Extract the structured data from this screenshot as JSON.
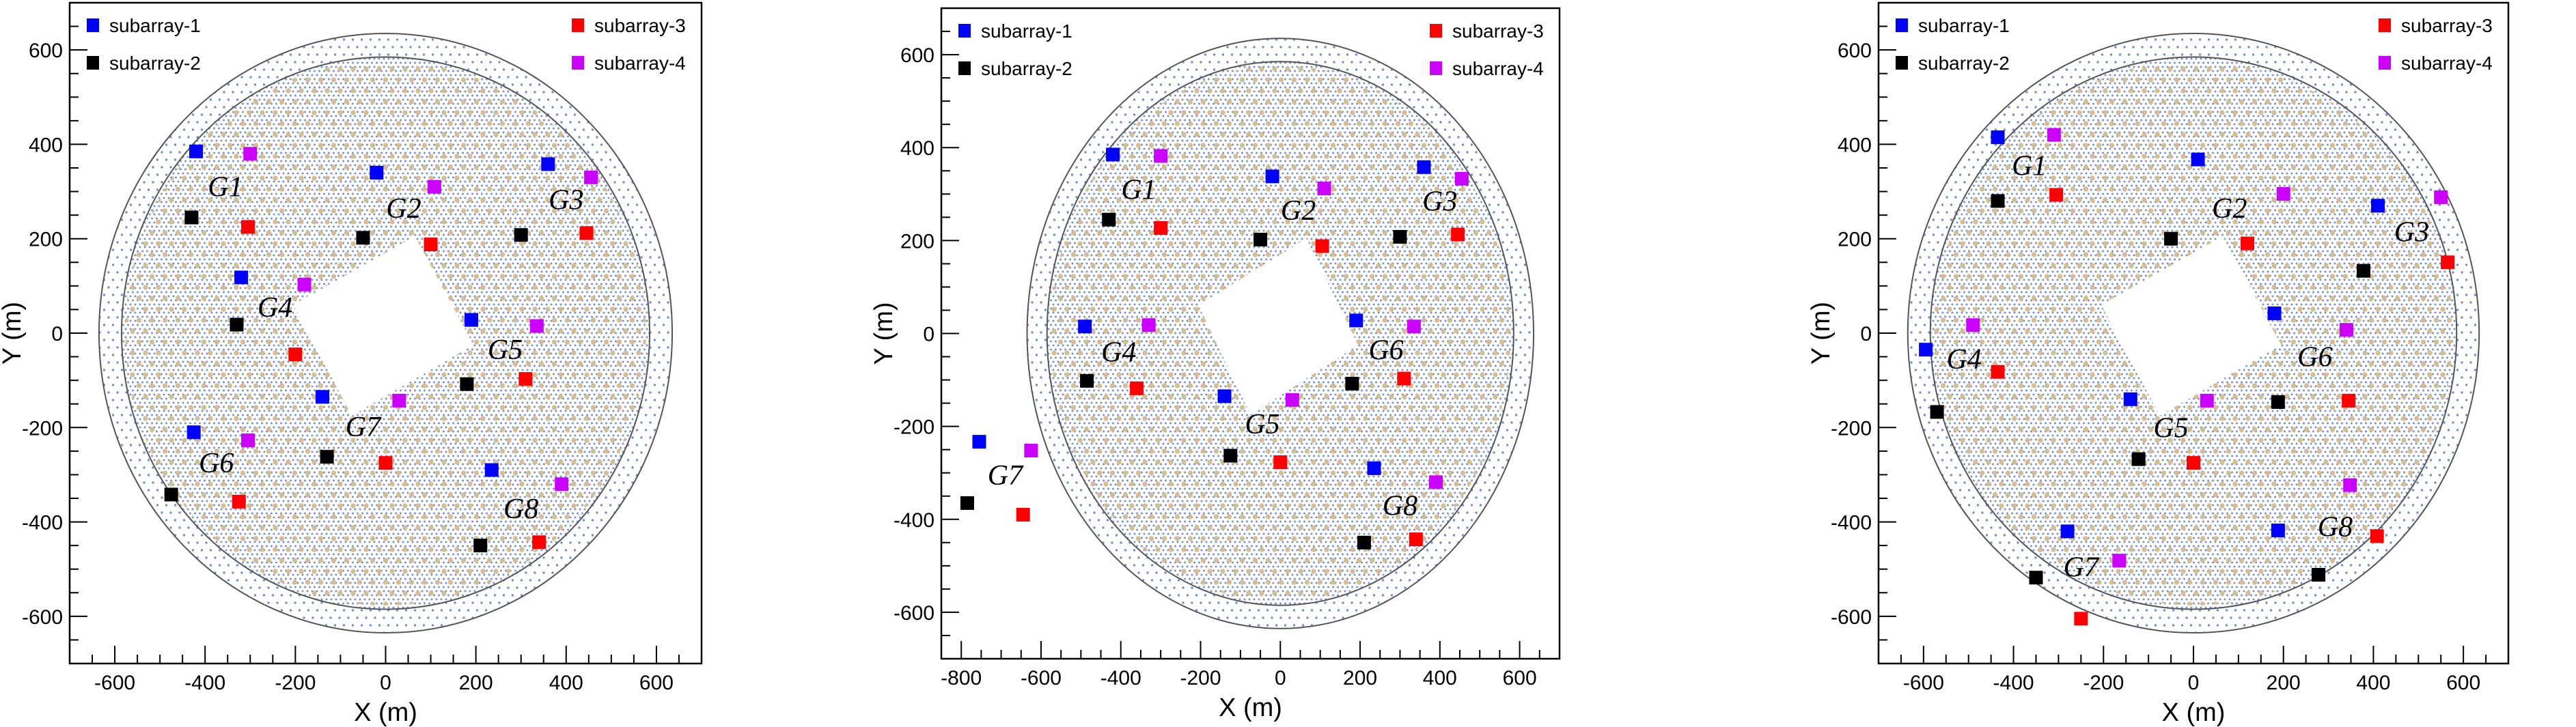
{
  "chart_data": [
    {
      "type": "scatter",
      "panel": "left",
      "xlabel": "X (m)",
      "ylabel": "Y (m)",
      "xlim": [
        -700,
        700
      ],
      "ylim": [
        -700,
        700
      ],
      "xticks": [
        -600,
        -400,
        -200,
        0,
        200,
        400,
        600
      ],
      "yticks": [
        -600,
        -400,
        -200,
        0,
        200,
        400,
        600
      ],
      "grid": false,
      "legend_placement": "top-left and top-right",
      "background": {
        "outer_circle_radius": 635,
        "inner_circle_radius": 585
      },
      "series": [
        {
          "name": "subarray-1",
          "color": "#0000ff",
          "points": [
            [
              -420,
              385
            ],
            [
              -20,
              340
            ],
            [
              360,
              358
            ],
            [
              -320,
              118
            ],
            [
              190,
              28
            ],
            [
              -140,
              -135
            ],
            [
              -425,
              -210
            ],
            [
              235,
              -290
            ]
          ]
        },
        {
          "name": "subarray-2",
          "color": "#000000",
          "points": [
            [
              -430,
              245
            ],
            [
              -50,
              202
            ],
            [
              300,
              208
            ],
            [
              -330,
              18
            ],
            [
              180,
              -108
            ],
            [
              -130,
              -262
            ],
            [
              -475,
              -342
            ],
            [
              210,
              -450
            ]
          ]
        },
        {
          "name": "subarray-3",
          "color": "#ff0000",
          "points": [
            [
              -305,
              225
            ],
            [
              100,
              188
            ],
            [
              445,
              212
            ],
            [
              -200,
              -45
            ],
            [
              310,
              -97
            ],
            [
              0,
              -275
            ],
            [
              -325,
              -357
            ],
            [
              340,
              -443
            ]
          ]
        },
        {
          "name": "subarray-4",
          "color": "#cc00ff",
          "points": [
            [
              -300,
              380
            ],
            [
              108,
              310
            ],
            [
              455,
              330
            ],
            [
              -180,
              103
            ],
            [
              335,
              15
            ],
            [
              30,
              -143
            ],
            [
              -305,
              -227
            ],
            [
              390,
              -320
            ]
          ]
        }
      ],
      "annotations": [
        {
          "text": "G1",
          "x": -355,
          "y": 310
        },
        {
          "text": "G2",
          "x": 40,
          "y": 265
        },
        {
          "text": "G3",
          "x": 400,
          "y": 283
        },
        {
          "text": "G4",
          "x": -245,
          "y": 55
        },
        {
          "text": "G5",
          "x": 265,
          "y": -35
        },
        {
          "text": "G6",
          "x": -375,
          "y": -275
        },
        {
          "text": "G7",
          "x": -50,
          "y": -198
        },
        {
          "text": "G8",
          "x": 300,
          "y": -372
        }
      ]
    },
    {
      "type": "scatter",
      "panel": "middle",
      "xlabel": "X (m)",
      "ylabel": "Y (m)",
      "xlim": [
        -850,
        700
      ],
      "ylim": [
        -700,
        700
      ],
      "xticks": [
        -800,
        -600,
        -400,
        -200,
        0,
        200,
        400,
        600
      ],
      "yticks": [
        -600,
        -400,
        -200,
        0,
        200,
        400,
        600
      ],
      "grid": false,
      "legend_placement": "top-left and top-right",
      "background": {
        "outer_circle_radius": 635,
        "inner_circle_radius": 585
      },
      "series": [
        {
          "name": "subarray-1",
          "color": "#0000ff",
          "points": [
            [
              -420,
              385
            ],
            [
              -20,
              338
            ],
            [
              360,
              358
            ],
            [
              -490,
              15
            ],
            [
              190,
              28
            ],
            [
              -140,
              -135
            ],
            [
              -755,
              -233
            ],
            [
              235,
              -290
            ]
          ]
        },
        {
          "name": "subarray-2",
          "color": "#000000",
          "points": [
            [
              -430,
              245
            ],
            [
              -50,
              202
            ],
            [
              300,
              208
            ],
            [
              -485,
              -102
            ],
            [
              180,
              -108
            ],
            [
              -125,
              -263
            ],
            [
              -785,
              -365
            ],
            [
              210,
              -450
            ]
          ]
        },
        {
          "name": "subarray-3",
          "color": "#ff0000",
          "points": [
            [
              -300,
              227
            ],
            [
              105,
              188
            ],
            [
              445,
              213
            ],
            [
              -360,
              -118
            ],
            [
              310,
              -97
            ],
            [
              0,
              -277
            ],
            [
              -645,
              -390
            ],
            [
              340,
              -443
            ]
          ]
        },
        {
          "name": "subarray-4",
          "color": "#cc00ff",
          "points": [
            [
              -300,
              382
            ],
            [
              110,
              312
            ],
            [
              455,
              333
            ],
            [
              -330,
              18
            ],
            [
              335,
              15
            ],
            [
              30,
              -143
            ],
            [
              -625,
              -252
            ],
            [
              390,
              -320
            ]
          ]
        }
      ],
      "annotations": [
        {
          "text": "G1",
          "x": -355,
          "y": 310
        },
        {
          "text": "G2",
          "x": 45,
          "y": 265
        },
        {
          "text": "G3",
          "x": 400,
          "y": 285
        },
        {
          "text": "G4",
          "x": -405,
          "y": -40
        },
        {
          "text": "G5",
          "x": -45,
          "y": -195
        },
        {
          "text": "G6",
          "x": 265,
          "y": -35
        },
        {
          "text": "G7",
          "x": -690,
          "y": -305
        },
        {
          "text": "G8",
          "x": 300,
          "y": -370
        }
      ]
    },
    {
      "type": "scatter",
      "panel": "right",
      "xlabel": "X (m)",
      "ylabel": "Y (m)",
      "xlim": [
        -700,
        700
      ],
      "ylim": [
        -700,
        700
      ],
      "xticks": [
        -600,
        -400,
        -200,
        0,
        200,
        400,
        600
      ],
      "yticks": [
        -600,
        -400,
        -200,
        0,
        200,
        400,
        600
      ],
      "grid": false,
      "legend_placement": "top-left and top-right",
      "background": {
        "outer_circle_radius": 635,
        "inner_circle_radius": 585
      },
      "series": [
        {
          "name": "subarray-1",
          "color": "#0000ff",
          "points": [
            [
              -435,
              415
            ],
            [
              10,
              368
            ],
            [
              410,
              270
            ],
            [
              -595,
              -35
            ],
            [
              180,
              42
            ],
            [
              -140,
              -140
            ],
            [
              -280,
              -420
            ],
            [
              188,
              -418
            ]
          ]
        },
        {
          "name": "subarray-2",
          "color": "#000000",
          "points": [
            [
              -435,
              280
            ],
            [
              -50,
              200
            ],
            [
              378,
              132
            ],
            [
              -570,
              -167
            ],
            [
              188,
              -146
            ],
            [
              -122,
              -267
            ],
            [
              -350,
              -518
            ],
            [
              278,
              -512
            ]
          ]
        },
        {
          "name": "subarray-3",
          "color": "#ff0000",
          "points": [
            [
              -305,
              293
            ],
            [
              120,
              190
            ],
            [
              565,
              150
            ],
            [
              -435,
              -82
            ],
            [
              345,
              -143
            ],
            [
              0,
              -275
            ],
            [
              -250,
              -605
            ],
            [
              408,
              -430
            ]
          ]
        },
        {
          "name": "subarray-4",
          "color": "#cc00ff",
          "points": [
            [
              -310,
              420
            ],
            [
              200,
              295
            ],
            [
              550,
              288
            ],
            [
              -490,
              17
            ],
            [
              340,
              7
            ],
            [
              30,
              -143
            ],
            [
              -165,
              -482
            ],
            [
              348,
              -322
            ]
          ]
        }
      ],
      "annotations": [
        {
          "text": "G1",
          "x": -365,
          "y": 355
        },
        {
          "text": "G2",
          "x": 80,
          "y": 265
        },
        {
          "text": "G3",
          "x": 485,
          "y": 215
        },
        {
          "text": "G4",
          "x": -510,
          "y": -55
        },
        {
          "text": "G5",
          "x": -50,
          "y": -200
        },
        {
          "text": "G6",
          "x": 270,
          "y": -50
        },
        {
          "text": "G7",
          "x": -250,
          "y": -495
        },
        {
          "text": "G8",
          "x": 315,
          "y": -410
        }
      ]
    }
  ]
}
